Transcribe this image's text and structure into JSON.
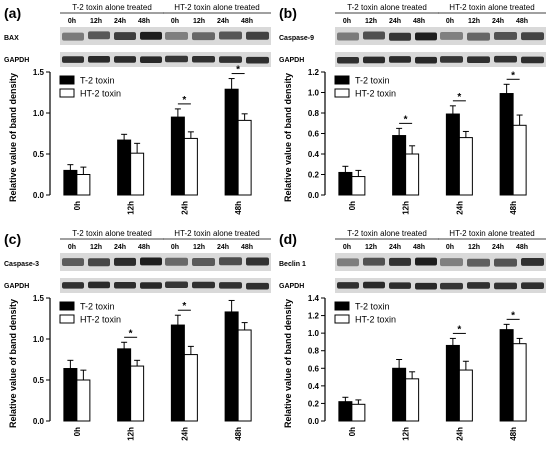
{
  "blot_header": {
    "group1": "T-2 toxin alone treated",
    "group2": "HT-2 toxin alone treated",
    "times": [
      "0h",
      "12h",
      "24h",
      "48h"
    ],
    "control_protein": "GAPDH"
  },
  "chart_data": [
    {
      "type": "bar",
      "panel": "(a)",
      "protein": "BAX",
      "ylabel": "Relative value of band density",
      "categories": [
        "0h",
        "12h",
        "24h",
        "48h"
      ],
      "ylim": [
        0,
        1.5
      ],
      "yticks": [
        "0.0",
        "0.5",
        "1.0",
        "1.5"
      ],
      "series": [
        {
          "name": "T-2 toxin",
          "values": [
            0.3,
            0.67,
            0.95,
            1.29
          ],
          "errors": [
            0.07,
            0.07,
            0.1,
            0.13
          ],
          "color": "#000000"
        },
        {
          "name": "HT-2 toxin",
          "values": [
            0.25,
            0.51,
            0.69,
            0.91
          ],
          "errors": [
            0.09,
            0.12,
            0.08,
            0.08
          ],
          "color": "#ffffff"
        }
      ],
      "significance": [
        "",
        "",
        "*",
        "*"
      ]
    },
    {
      "type": "bar",
      "panel": "(b)",
      "protein": "Caspase-9",
      "ylabel": "Relative value of band density",
      "categories": [
        "0h",
        "12h",
        "24h",
        "48h"
      ],
      "ylim": [
        0,
        1.2
      ],
      "yticks": [
        "0.0",
        "0.2",
        "0.4",
        "0.6",
        "0.8",
        "1.0",
        "1.2"
      ],
      "series": [
        {
          "name": "T-2 toxin",
          "values": [
            0.22,
            0.58,
            0.79,
            0.99
          ],
          "errors": [
            0.06,
            0.07,
            0.08,
            0.09
          ],
          "color": "#000000"
        },
        {
          "name": "HT-2 toxin",
          "values": [
            0.18,
            0.4,
            0.56,
            0.68
          ],
          "errors": [
            0.06,
            0.08,
            0.06,
            0.1
          ],
          "color": "#ffffff"
        }
      ],
      "significance": [
        "",
        "*",
        "*",
        "*"
      ]
    },
    {
      "type": "bar",
      "panel": "(c)",
      "protein": "Caspase-3",
      "ylabel": "Relative value of band density",
      "categories": [
        "0h",
        "12h",
        "24h",
        "48h"
      ],
      "ylim": [
        0,
        1.5
      ],
      "yticks": [
        "0.0",
        "0.5",
        "1.0",
        "1.5"
      ],
      "series": [
        {
          "name": "T-2 toxin",
          "values": [
            0.64,
            0.88,
            1.17,
            1.33
          ],
          "errors": [
            0.1,
            0.08,
            0.12,
            0.14
          ],
          "color": "#000000"
        },
        {
          "name": "HT-2 toxin",
          "values": [
            0.5,
            0.67,
            0.81,
            1.11
          ],
          "errors": [
            0.12,
            0.07,
            0.1,
            0.09
          ],
          "color": "#ffffff"
        }
      ],
      "significance": [
        "",
        "*",
        "*",
        ""
      ]
    },
    {
      "type": "bar",
      "panel": "(d)",
      "protein": "Beclin 1",
      "ylabel": "Relative value of band density",
      "categories": [
        "0h",
        "12h",
        "24h",
        "48h"
      ],
      "ylim": [
        0,
        1.4
      ],
      "yticks": [
        "0.0",
        "0.2",
        "0.4",
        "0.6",
        "0.8",
        "1.0",
        "1.2",
        "1.4"
      ],
      "series": [
        {
          "name": "T-2 toxin",
          "values": [
            0.22,
            0.6,
            0.86,
            1.04
          ],
          "errors": [
            0.05,
            0.1,
            0.08,
            0.06
          ],
          "color": "#000000"
        },
        {
          "name": "HT-2 toxin",
          "values": [
            0.19,
            0.48,
            0.58,
            0.88
          ],
          "errors": [
            0.05,
            0.08,
            0.1,
            0.06
          ],
          "color": "#ffffff"
        }
      ],
      "significance": [
        "",
        "",
        "*",
        "*"
      ]
    }
  ]
}
